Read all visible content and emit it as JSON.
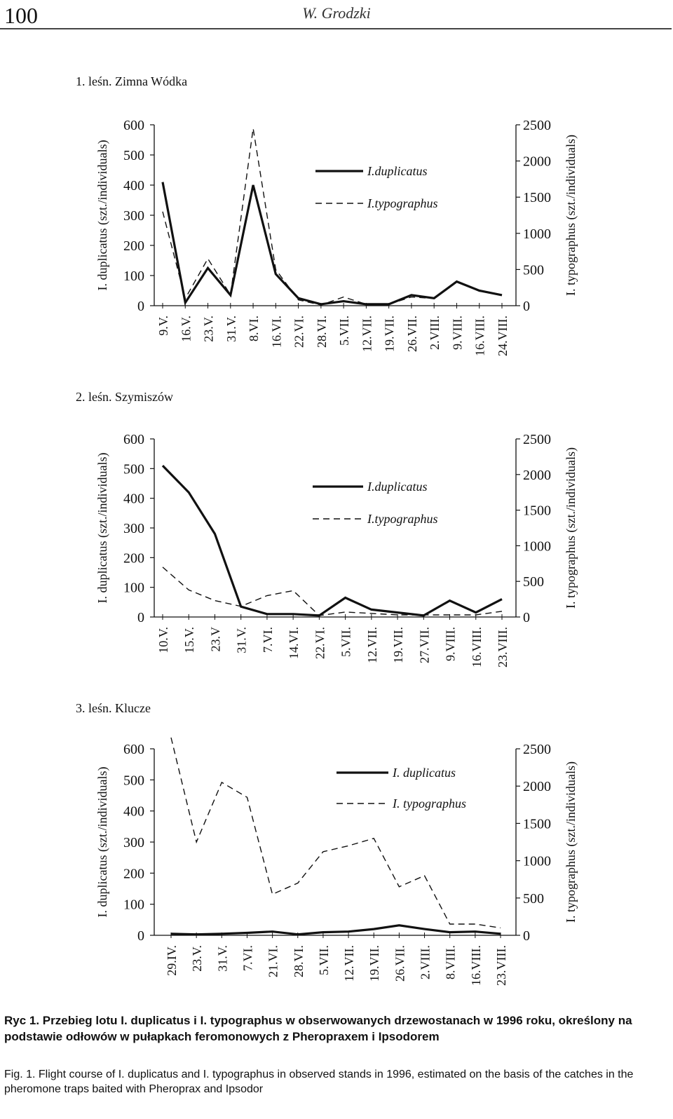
{
  "header": {
    "page_number": "100",
    "author": "W. Grodzki"
  },
  "caption": {
    "pl": "Ryc 1. Przebieg lotu I. duplicatus i I. typographus w obserwowanych drzewostanach w 1996 roku, określony na podstawie odłowów w pułapkach feromonowych z Pheropraxem i Ipsodorem",
    "en": "Fig. 1. Flight course of I. duplicatus and I. typographus in observed stands in 1996, estimated on the basis of the catches in the pheromone traps baited with Pheroprax and Ipsodor"
  },
  "colors": {
    "ink": "#111111",
    "background": "#ffffff"
  },
  "chart_data": [
    {
      "type": "line",
      "title": "1. leśn. Zimna Wódka",
      "ylabel_left": "I. duplicatus (szt./individuals)",
      "ylabel_right": "I. typographus (szt./individuals)",
      "ylim_left": [
        0,
        600
      ],
      "ylim_right": [
        0,
        2500
      ],
      "yticks_left": [
        0,
        100,
        200,
        300,
        400,
        500,
        600
      ],
      "yticks_right": [
        0,
        500,
        1000,
        1500,
        2000,
        2500
      ],
      "legend_position": "top-center",
      "categories": [
        "9.V.",
        "16.V.",
        "23.V.",
        "31.V.",
        "8.VI.",
        "16.VI.",
        "22.VI.",
        "28.VI.",
        "5.VII.",
        "12.VII.",
        "19.VII.",
        "26.VII.",
        "2.VIII.",
        "9.VIII.",
        "16.VIII.",
        "24.VIII."
      ],
      "series": [
        {
          "name": "I.duplicatus",
          "axis": "left",
          "style": "solid",
          "values": [
            410,
            10,
            125,
            35,
            400,
            105,
            25,
            5,
            15,
            5,
            5,
            35,
            25,
            80,
            50,
            35
          ]
        },
        {
          "name": "I.typographus",
          "axis": "right",
          "style": "dashed",
          "values": [
            1300,
            100,
            650,
            150,
            2450,
            500,
            80,
            10,
            120,
            20,
            20,
            120,
            100,
            330,
            200,
            150
          ]
        }
      ]
    },
    {
      "type": "line",
      "title": "2. leśn. Szymiszów",
      "ylabel_left": "I. duplicatus (szt./individuals)",
      "ylabel_right": "I. typographus (szt./individuals)",
      "ylim_left": [
        0,
        600
      ],
      "ylim_right": [
        0,
        2500
      ],
      "yticks_left": [
        0,
        100,
        200,
        300,
        400,
        500,
        600
      ],
      "yticks_right": [
        0,
        500,
        1000,
        1500,
        2000,
        2500
      ],
      "legend_position": "top-center",
      "categories": [
        "10.V.",
        "15.V.",
        "23.V",
        "31.V.",
        "7.VI.",
        "14.VI.",
        "22.VI.",
        "5.VII.",
        "12.VII.",
        "19.VII.",
        "27.VII.",
        "9.VIII.",
        "16.VIII.",
        "23.VIII."
      ],
      "series": [
        {
          "name": "I.duplicatus",
          "axis": "left",
          "style": "solid",
          "values": [
            510,
            420,
            280,
            35,
            10,
            10,
            5,
            65,
            25,
            15,
            5,
            55,
            15,
            60
          ]
        },
        {
          "name": "I.typographus",
          "axis": "right",
          "style": "dashed",
          "values": [
            700,
            380,
            230,
            150,
            300,
            370,
            20,
            70,
            50,
            30,
            30,
            30,
            30,
            80
          ]
        }
      ]
    },
    {
      "type": "line",
      "title": "3. leśn. Klucze",
      "ylabel_left": "I. duplicatus (szt./individuals)",
      "ylabel_right": "I. typographus (szt./individuals)",
      "ylim_left": [
        0,
        600
      ],
      "ylim_right": [
        0,
        2500
      ],
      "yticks_left": [
        0,
        100,
        200,
        300,
        400,
        500,
        600
      ],
      "yticks_right": [
        0,
        500,
        1000,
        1500,
        2000,
        2500
      ],
      "legend_position": "top-center",
      "categories": [
        "29.IV.",
        "23.V.",
        "31.V.",
        "7.VI.",
        "21.VI.",
        "28.VI.",
        "5.VII.",
        "12.VII.",
        "19.VII.",
        "26.VII.",
        "2.VIII.",
        "8.VIII.",
        "16.VIII.",
        "23.VIII."
      ],
      "series": [
        {
          "name": "I. duplicatus",
          "axis": "left",
          "style": "solid",
          "values": [
            5,
            3,
            5,
            8,
            12,
            3,
            10,
            12,
            20,
            32,
            20,
            10,
            12,
            5
          ]
        },
        {
          "name": "I. typographus",
          "axis": "right",
          "style": "dashed",
          "values": [
            2650,
            1250,
            2050,
            1850,
            550,
            700,
            1120,
            1200,
            1300,
            650,
            800,
            150,
            150,
            100
          ]
        }
      ]
    }
  ]
}
